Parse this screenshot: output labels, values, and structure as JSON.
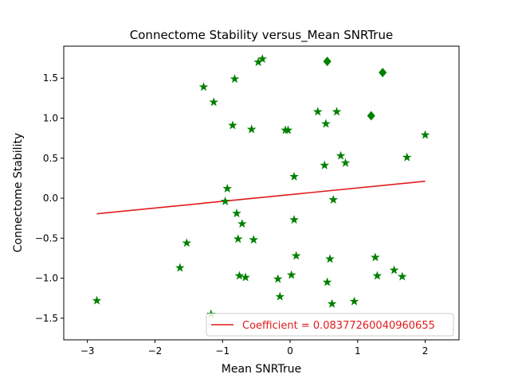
{
  "chart_data": {
    "type": "scatter",
    "title": "Connectome Stability versus_Mean SNRTrue",
    "xlabel": "Mean SNRTrue",
    "ylabel": "Connectome Stability",
    "xlim": [
      -3.35,
      2.5
    ],
    "ylim": [
      -1.77,
      1.9
    ],
    "xticks": [
      -3,
      -2,
      -1,
      0,
      1,
      2
    ],
    "xtick_labels": [
      "−3",
      "−2",
      "−1",
      "0",
      "1",
      "2"
    ],
    "yticks": [
      -1.5,
      -1.0,
      -0.5,
      0.0,
      0.5,
      1.0,
      1.5
    ],
    "ytick_labels": [
      "−1.5",
      "−1.0",
      "−0.5",
      "0.0",
      "0.5",
      "1.0",
      "1.5"
    ],
    "grid": false,
    "colors": {
      "points": "#008000",
      "fit_line": "#e31a1c",
      "axes": "#000000",
      "legend_border": "#cccccc"
    },
    "series": [
      {
        "name": "stars",
        "marker": "star",
        "points": [
          [
            -2.86,
            -1.28
          ],
          [
            -1.63,
            -0.87
          ],
          [
            -1.53,
            -0.56
          ],
          [
            -1.28,
            1.39
          ],
          [
            -1.13,
            1.2
          ],
          [
            -1.17,
            -1.45
          ],
          [
            -0.93,
            0.12
          ],
          [
            -0.96,
            -0.04
          ],
          [
            -0.85,
            0.91
          ],
          [
            -0.82,
            1.49
          ],
          [
            -0.79,
            -0.19
          ],
          [
            -0.77,
            -0.51
          ],
          [
            -0.75,
            -0.97
          ],
          [
            -0.71,
            -0.32
          ],
          [
            -0.66,
            -0.99
          ],
          [
            -0.57,
            0.86
          ],
          [
            -0.54,
            -0.52
          ],
          [
            -0.47,
            1.7
          ],
          [
            -0.41,
            1.74
          ],
          [
            -0.18,
            -1.01
          ],
          [
            -0.15,
            -1.23
          ],
          [
            -0.07,
            0.85
          ],
          [
            -0.03,
            0.85
          ],
          [
            0.02,
            -0.96
          ],
          [
            0.06,
            0.27
          ],
          [
            0.06,
            -0.27
          ],
          [
            0.09,
            -0.72
          ],
          [
            0.41,
            1.08
          ],
          [
            0.51,
            0.41
          ],
          [
            0.53,
            0.93
          ],
          [
            0.55,
            -1.05
          ],
          [
            0.59,
            -0.76
          ],
          [
            0.62,
            -1.32
          ],
          [
            0.64,
            -0.02
          ],
          [
            0.69,
            1.08
          ],
          [
            0.75,
            0.53
          ],
          [
            0.82,
            0.44
          ],
          [
            0.95,
            -1.29
          ],
          [
            1.26,
            -0.74
          ],
          [
            1.29,
            -0.97
          ],
          [
            1.54,
            -0.9
          ],
          [
            1.66,
            -0.98
          ],
          [
            1.73,
            0.51
          ],
          [
            2.0,
            0.79
          ]
        ]
      },
      {
        "name": "diamonds",
        "marker": "diamond",
        "points": [
          [
            0.55,
            1.71
          ],
          [
            1.37,
            1.57
          ],
          [
            1.2,
            1.03
          ]
        ]
      }
    ],
    "fit_line": {
      "x": [
        -2.86,
        2.0
      ],
      "y": [
        -0.195,
        0.212
      ]
    },
    "legend": {
      "position": "lower-right",
      "entries": [
        "Coefficient = 0.08377260040960655"
      ]
    }
  }
}
